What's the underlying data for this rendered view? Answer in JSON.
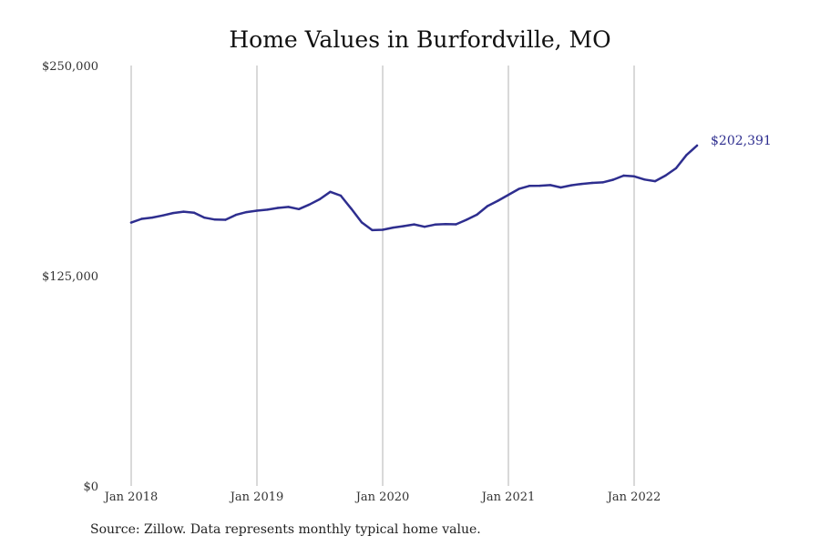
{
  "source_note": "Source: Zillow. Data represents monthly typical home value.",
  "chart_data": {
    "type": "line",
    "title": "Home Values in Burfordville, MO",
    "xlabel": "",
    "ylabel": "",
    "ylim": [
      0,
      250000
    ],
    "y_ticks": [
      {
        "value": 0,
        "label": "$0"
      },
      {
        "value": 125000,
        "label": "$125,000"
      },
      {
        "value": 250000,
        "label": "$250,000"
      }
    ],
    "x_ticks": [
      {
        "date": "2018-01",
        "label": "Jan 2018"
      },
      {
        "date": "2019-01",
        "label": "Jan 2019"
      },
      {
        "date": "2020-01",
        "label": "Jan 2020"
      },
      {
        "date": "2021-01",
        "label": "Jan 2021"
      },
      {
        "date": "2022-01",
        "label": "Jan 2022"
      }
    ],
    "x_range": [
      "2018-01",
      "2022-12"
    ],
    "grid": {
      "vertical": true,
      "horizontal": false
    },
    "line_color": "#2e2e8f",
    "end_label": "$202,391",
    "series": [
      {
        "x": [
          "2018-01",
          "2018-02",
          "2018-03",
          "2018-04",
          "2018-05",
          "2018-06",
          "2018-07",
          "2018-08",
          "2018-09",
          "2018-10",
          "2018-11",
          "2018-12",
          "2019-01",
          "2019-02",
          "2019-03",
          "2019-04",
          "2019-05",
          "2019-06",
          "2019-07",
          "2019-08",
          "2019-09",
          "2019-10",
          "2019-11",
          "2019-12",
          "2020-01",
          "2020-02",
          "2020-03",
          "2020-04",
          "2020-05",
          "2020-06",
          "2020-07",
          "2020-08",
          "2020-09",
          "2020-10",
          "2020-11",
          "2020-12",
          "2021-01",
          "2021-02",
          "2021-03",
          "2021-04",
          "2021-05",
          "2021-06",
          "2021-07",
          "2021-08",
          "2021-09",
          "2021-10",
          "2021-11",
          "2021-12",
          "2022-01",
          "2022-02",
          "2022-03",
          "2022-04",
          "2022-05",
          "2022-06",
          "2022-07"
        ],
        "y": [
          156600,
          158800,
          159600,
          160800,
          162300,
          163100,
          162500,
          159500,
          158400,
          158300,
          161200,
          162800,
          163700,
          164300,
          165300,
          165900,
          164600,
          167300,
          170500,
          174900,
          172600,
          164900,
          156700,
          152100,
          152300,
          153600,
          154500,
          155500,
          154100,
          155400,
          155700,
          155600,
          158300,
          161300,
          166400,
          169600,
          173100,
          176600,
          178400,
          178500,
          178900,
          177500,
          178800,
          179600,
          180200,
          180500,
          182100,
          184500,
          184100,
          182200,
          181200,
          184600,
          188900,
          196800,
          202391
        ]
      }
    ]
  }
}
